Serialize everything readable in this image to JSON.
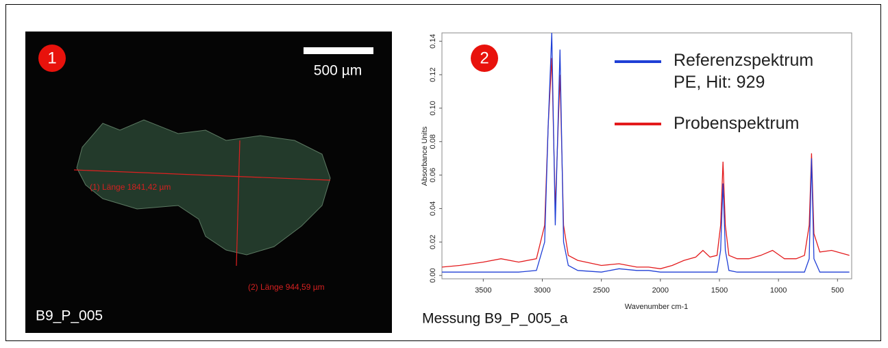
{
  "panel_photo": {
    "badge": "1",
    "scale_bar": "500 µm",
    "measurements": [
      "(1) Länge 1841,42 µm",
      "(2) Länge 944,59 µm"
    ],
    "label": "B9_P_005"
  },
  "chart_data": {
    "type": "line",
    "badge": "2",
    "caption": "Messung B9_P_005_a",
    "xlabel": "Wavenumber cm-1",
    "ylabel": "Absorbance Units",
    "x": [
      3850,
      3700,
      3500,
      3350,
      3200,
      3050,
      2980,
      2950,
      2920,
      2890,
      2850,
      2820,
      2780,
      2700,
      2500,
      2350,
      2200,
      2100,
      2000,
      1900,
      1800,
      1700,
      1640,
      1580,
      1520,
      1490,
      1470,
      1450,
      1420,
      1350,
      1250,
      1150,
      1050,
      950,
      850,
      780,
      740,
      720,
      700,
      650,
      550,
      400
    ],
    "series": [
      {
        "name": "Probenspektrum",
        "color": "#e31a1c",
        "values": [
          0.005,
          0.006,
          0.008,
          0.01,
          0.008,
          0.01,
          0.03,
          0.09,
          0.13,
          0.04,
          0.12,
          0.03,
          0.012,
          0.009,
          0.006,
          0.007,
          0.005,
          0.005,
          0.004,
          0.006,
          0.009,
          0.011,
          0.015,
          0.011,
          0.012,
          0.03,
          0.068,
          0.03,
          0.012,
          0.01,
          0.01,
          0.012,
          0.015,
          0.01,
          0.01,
          0.012,
          0.03,
          0.073,
          0.025,
          0.014,
          0.015,
          0.012
        ]
      },
      {
        "name": "Referenzspektrum PE, Hit: 929",
        "color": "#1f3fd6",
        "values": [
          0.002,
          0.002,
          0.002,
          0.002,
          0.002,
          0.003,
          0.02,
          0.09,
          0.145,
          0.03,
          0.135,
          0.02,
          0.006,
          0.003,
          0.002,
          0.004,
          0.003,
          0.003,
          0.002,
          0.002,
          0.002,
          0.002,
          0.002,
          0.002,
          0.002,
          0.015,
          0.055,
          0.015,
          0.003,
          0.002,
          0.002,
          0.002,
          0.002,
          0.002,
          0.002,
          0.002,
          0.01,
          0.07,
          0.01,
          0.002,
          0.002,
          0.002
        ]
      }
    ],
    "xlim": [
      3850,
      380
    ],
    "xticks": [
      3500,
      3000,
      2500,
      2000,
      1500,
      1000,
      500
    ],
    "ylim": [
      -0.002,
      0.145
    ],
    "yticks": [
      {
        "value": 0,
        "label": "0.00"
      },
      {
        "value": 0.02,
        "label": "0.02"
      },
      {
        "value": 0.04,
        "label": "0.04"
      },
      {
        "value": 0.06,
        "label": "0.06"
      },
      {
        "value": 0.08,
        "label": "0.08"
      },
      {
        "value": 0.1,
        "label": "0.10"
      },
      {
        "value": 0.12,
        "label": "0.12"
      },
      {
        "value": 0.14,
        "label": "0.14"
      }
    ]
  }
}
